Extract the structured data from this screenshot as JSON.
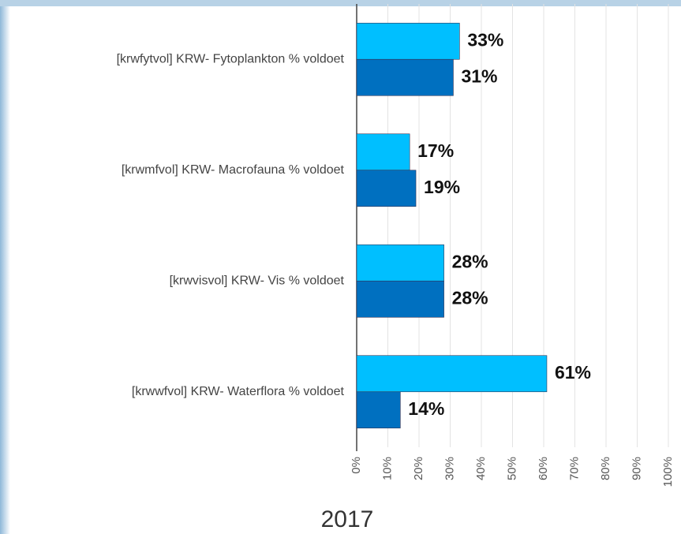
{
  "chart_data": {
    "type": "hbar",
    "xlabel": "2017",
    "categories": [
      "[krwfytvol] KRW- Fytoplankton % voldoet",
      "[krwmfvol] KRW- Macrofauna % voldoet",
      "[krwvisvol] KRW- Vis % voldoet",
      "[krwwfvol] KRW- Waterflora % voldoet"
    ],
    "series": [
      {
        "color": "#00bfff",
        "values": [
          33,
          17,
          28,
          61
        ],
        "value_labels": [
          "33%",
          "17%",
          "28%",
          "61%"
        ]
      },
      {
        "color": "#0070c0",
        "values": [
          31,
          19,
          28,
          14
        ],
        "value_labels": [
          "31%",
          "19%",
          "28%",
          "14%"
        ]
      }
    ],
    "xlim": [
      0,
      100
    ],
    "xticks": [
      {
        "value": 0,
        "label": "0%"
      },
      {
        "value": 10,
        "label": "10%"
      },
      {
        "value": 20,
        "label": "20%"
      },
      {
        "value": 30,
        "label": "30%"
      },
      {
        "value": 40,
        "label": "40%"
      },
      {
        "value": 50,
        "label": "50%"
      },
      {
        "value": 60,
        "label": "60%"
      },
      {
        "value": 70,
        "label": "70%"
      },
      {
        "value": 80,
        "label": "80%"
      },
      {
        "value": 90,
        "label": "90%"
      },
      {
        "value": 100,
        "label": "100%"
      }
    ],
    "grid": true
  }
}
